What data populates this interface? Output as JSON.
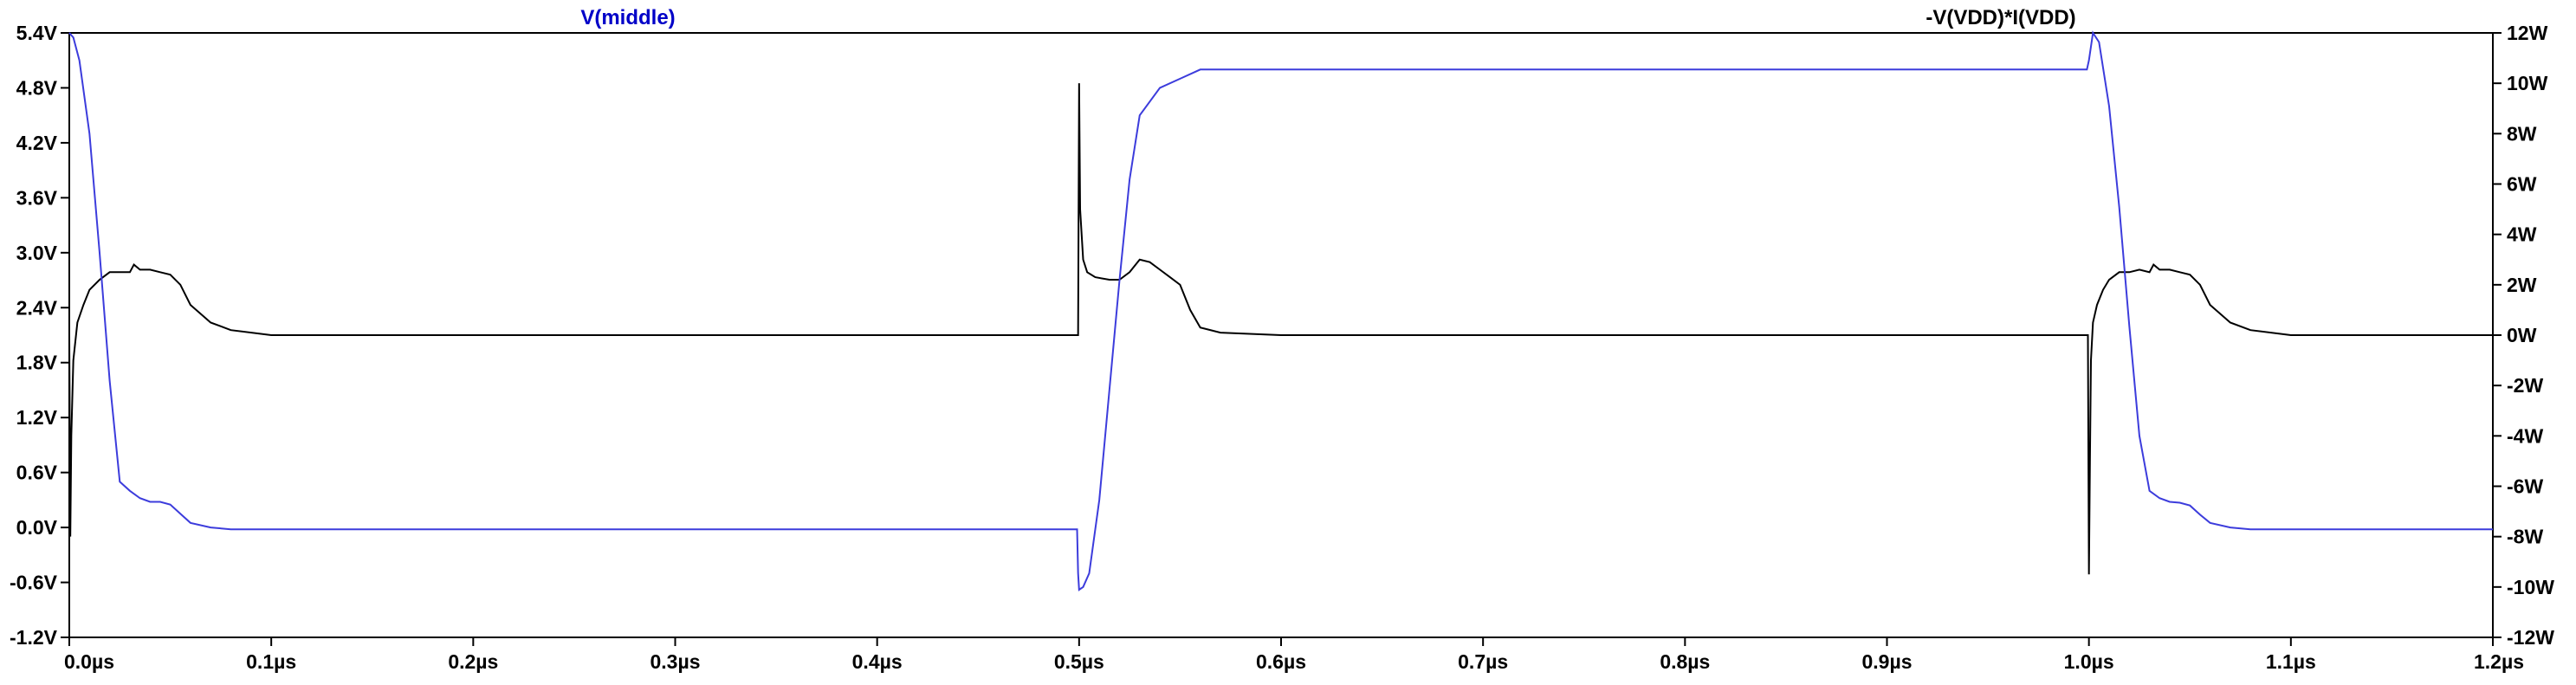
{
  "colors": {
    "background": "#ffffff",
    "axis": "#000000",
    "grid": "#c8c8c8",
    "trace_middle": "#3c3cdc",
    "trace_power": "#000000",
    "label_middle": "#0000c8",
    "label_power": "#000000"
  },
  "chart_data": {
    "type": "line",
    "title": "",
    "xlabel": "",
    "ylabel": "",
    "grid": false,
    "x_unit": "µs",
    "x_range": [
      0.0,
      1.2
    ],
    "x_ticks": [
      0.0,
      0.1,
      0.2,
      0.3,
      0.4,
      0.5,
      0.6,
      0.7,
      0.8,
      0.9,
      1.0,
      1.1,
      1.2
    ],
    "x_tick_labels": [
      "0.0µs",
      "0.1µs",
      "0.2µs",
      "0.3µs",
      "0.4µs",
      "0.5µs",
      "0.6µs",
      "0.7µs",
      "0.8µs",
      "0.9µs",
      "1.0µs",
      "1.1µs",
      "1.2µs"
    ],
    "y_left": {
      "unit": "V",
      "range": [
        -1.2,
        5.4
      ],
      "ticks": [
        5.4,
        4.8,
        4.2,
        3.6,
        3.0,
        2.4,
        1.8,
        1.2,
        0.6,
        0.0,
        -0.6,
        -1.2
      ],
      "tick_labels": [
        "5.4V",
        "4.8V",
        "4.2V",
        "3.6V",
        "3.0V",
        "2.4V",
        "1.8V",
        "1.2V",
        "0.6V",
        "0.0V",
        "-0.6V",
        "-1.2V"
      ]
    },
    "y_right": {
      "unit": "W",
      "range": [
        -12,
        12
      ],
      "ticks": [
        12,
        10,
        8,
        6,
        4,
        2,
        0,
        -2,
        -4,
        -6,
        -8,
        -10,
        -12
      ],
      "tick_labels": [
        "12W",
        "10W",
        "8W",
        "6W",
        "4W",
        "2W",
        "0W",
        "-2W",
        "-4W",
        "-6W",
        "-8W",
        "-10W",
        "-12W"
      ]
    },
    "series": [
      {
        "name": "V(middle)",
        "axis": "left",
        "color": "#3c3cdc",
        "x": [
          0.0,
          0.002,
          0.005,
          0.01,
          0.015,
          0.02,
          0.025,
          0.03,
          0.035,
          0.04,
          0.045,
          0.05,
          0.055,
          0.06,
          0.07,
          0.08,
          0.1,
          0.15,
          0.2,
          0.3,
          0.4,
          0.499,
          0.4995,
          0.5,
          0.502,
          0.505,
          0.51,
          0.515,
          0.52,
          0.525,
          0.53,
          0.54,
          0.55,
          0.56,
          0.57,
          0.6,
          0.7,
          0.8,
          0.9,
          0.999,
          1.0,
          1.002,
          1.005,
          1.01,
          1.015,
          1.02,
          1.025,
          1.03,
          1.035,
          1.04,
          1.045,
          1.05,
          1.055,
          1.06,
          1.07,
          1.08,
          1.1,
          1.15,
          1.2
        ],
        "values": [
          5.4,
          5.35,
          5.1,
          4.3,
          3.0,
          1.6,
          0.5,
          0.4,
          0.32,
          0.28,
          0.28,
          0.25,
          0.15,
          0.05,
          0.0,
          -0.02,
          -0.02,
          -0.02,
          -0.02,
          -0.02,
          -0.02,
          -0.02,
          -0.5,
          -0.68,
          -0.65,
          -0.5,
          0.3,
          1.5,
          2.7,
          3.8,
          4.5,
          4.8,
          4.9,
          5.0,
          5.0,
          5.0,
          5.0,
          5.0,
          5.0,
          5.0,
          5.1,
          5.4,
          5.3,
          4.6,
          3.5,
          2.2,
          1.0,
          0.4,
          0.32,
          0.28,
          0.27,
          0.24,
          0.14,
          0.05,
          0.0,
          -0.02,
          -0.02,
          -0.02,
          -0.02
        ]
      },
      {
        "name": "-V(VDD)*I(VDD)",
        "axis": "right",
        "color": "#000000",
        "x": [
          0.0,
          0.0005,
          0.001,
          0.002,
          0.004,
          0.007,
          0.01,
          0.015,
          0.02,
          0.025,
          0.03,
          0.032,
          0.035,
          0.04,
          0.045,
          0.05,
          0.055,
          0.06,
          0.07,
          0.08,
          0.1,
          0.2,
          0.3,
          0.4,
          0.4995,
          0.5,
          0.5005,
          0.502,
          0.504,
          0.508,
          0.515,
          0.52,
          0.525,
          0.53,
          0.535,
          0.54,
          0.545,
          0.55,
          0.555,
          0.56,
          0.57,
          0.6,
          0.7,
          0.8,
          0.9,
          0.9995,
          1.0,
          1.0005,
          1.001,
          1.002,
          1.004,
          1.007,
          1.01,
          1.015,
          1.02,
          1.025,
          1.03,
          1.032,
          1.035,
          1.04,
          1.045,
          1.05,
          1.055,
          1.06,
          1.07,
          1.08,
          1.1,
          1.2
        ],
        "values": [
          0.0,
          -8.0,
          -4.0,
          -1.0,
          0.5,
          1.2,
          1.8,
          2.2,
          2.5,
          2.5,
          2.5,
          2.8,
          2.6,
          2.6,
          2.5,
          2.4,
          2.0,
          1.2,
          0.5,
          0.2,
          0.0,
          0.0,
          0.0,
          0.0,
          0.0,
          10.0,
          5.0,
          3.0,
          2.5,
          2.3,
          2.2,
          2.2,
          2.5,
          3.0,
          2.9,
          2.6,
          2.3,
          2.0,
          1.0,
          0.3,
          0.1,
          0.0,
          0.0,
          0.0,
          0.0,
          0.0,
          -9.5,
          -5.0,
          -1.0,
          0.5,
          1.2,
          1.8,
          2.2,
          2.5,
          2.5,
          2.6,
          2.5,
          2.8,
          2.6,
          2.6,
          2.5,
          2.4,
          2.0,
          1.2,
          0.5,
          0.2,
          0.0,
          0.0
        ]
      }
    ]
  }
}
